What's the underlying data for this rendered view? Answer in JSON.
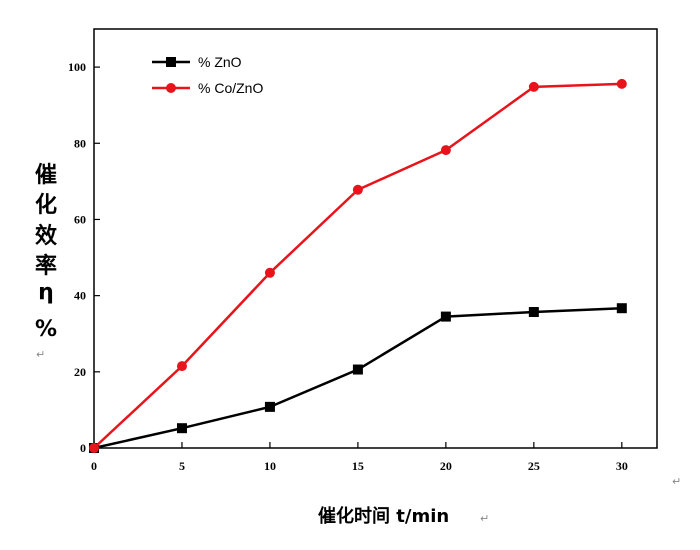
{
  "chart_data": {
    "type": "line",
    "title": "",
    "xlabel": "催化时间 t/min",
    "ylabel": "催化效率η%",
    "x": [
      0,
      5,
      10,
      15,
      20,
      25,
      30
    ],
    "xlim": [
      0,
      32
    ],
    "ylim": [
      0,
      110
    ],
    "xticks": [
      0,
      5,
      10,
      15,
      20,
      25,
      30
    ],
    "yticks": [
      0,
      20,
      40,
      60,
      80,
      100
    ],
    "grid": false,
    "legend_position": "top-left",
    "series": [
      {
        "name": "% ZnO",
        "color": "#000000",
        "marker": "square",
        "values": [
          0,
          5.2,
          10.8,
          20.6,
          34.5,
          35.7,
          36.7
        ]
      },
      {
        "name": "% Co/ZnO",
        "color": "#e8141b",
        "marker": "circle",
        "values": [
          0,
          21.5,
          46,
          67.8,
          78.2,
          94.8,
          95.6
        ]
      }
    ],
    "marks": {
      "paragraph_1": "↵",
      "paragraph_2": "↵",
      "arrow": "↵"
    }
  }
}
